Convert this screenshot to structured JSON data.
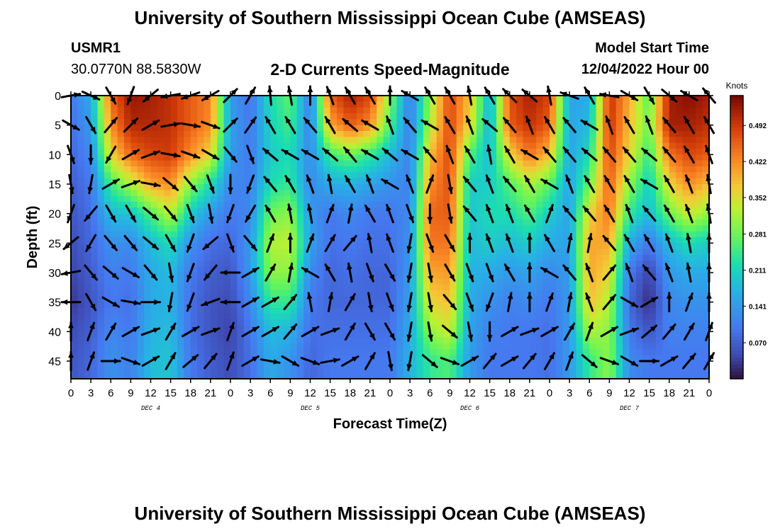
{
  "chart_data": {
    "type": "heatmap",
    "title": "University of Southern Mississippi Ocean Cube (AMSEAS)",
    "footer_title": "University of Southern Mississippi Ocean Cube (AMSEAS)",
    "station": "USMR1",
    "location": "30.0770N  88.5830W",
    "subtitle": "2-D Currents Speed-Magnitude",
    "model_start_label": "Model Start Time",
    "model_start_value": "12/04/2022 Hour 00",
    "xlabel": "Forecast Time(Z)",
    "ylabel": "Depth (ft)",
    "x_ticks": [
      "0",
      "3",
      "6",
      "9",
      "12",
      "15",
      "18",
      "21",
      "0",
      "3",
      "6",
      "9",
      "12",
      "15",
      "18",
      "21",
      "0",
      "3",
      "6",
      "9",
      "12",
      "15",
      "18",
      "21",
      "0",
      "3",
      "6",
      "9",
      "12",
      "15",
      "18",
      "21",
      "0"
    ],
    "day_labels": [
      {
        "text": "DEC 4",
        "hour": 12
      },
      {
        "text": "DEC 5",
        "hour": 36
      },
      {
        "text": "DEC 6",
        "hour": 60
      },
      {
        "text": "DEC 7",
        "hour": 84
      }
    ],
    "xlim": [
      0,
      96
    ],
    "ylim": [
      0,
      48
    ],
    "y_ticks": [
      "0",
      "5",
      "10",
      "15",
      "20",
      "25",
      "30",
      "35",
      "40",
      "45"
    ],
    "y_tick_values": [
      0,
      5,
      10,
      15,
      20,
      25,
      30,
      35,
      40,
      45
    ],
    "colorbar": {
      "unit": "Knots",
      "range": [
        0.0,
        0.55
      ],
      "ticks": [
        "0.492",
        "0.422",
        "0.352",
        "0.281",
        "0.211",
        "0.141",
        "0.070"
      ],
      "tick_values": [
        0.492,
        0.422,
        0.352,
        0.281,
        0.211,
        0.141,
        0.07
      ]
    },
    "speed_field_hours": [
      0,
      3,
      6,
      9,
      12,
      15,
      18,
      21,
      24,
      27,
      30,
      33,
      36,
      39,
      42,
      45,
      48,
      51,
      54,
      57,
      60,
      63,
      66,
      69,
      72,
      75,
      78,
      81,
      84,
      87,
      90,
      93,
      96
    ],
    "speed_field_depths": [
      0,
      5,
      10,
      15,
      20,
      25,
      30,
      35,
      40,
      45,
      48
    ],
    "speed_field": [
      [
        0.1,
        0.09,
        0.08,
        0.07,
        0.06,
        0.05,
        0.04,
        0.03,
        0.05,
        0.06,
        0.06
      ],
      [
        0.16,
        0.14,
        0.12,
        0.1,
        0.09,
        0.08,
        0.07,
        0.06,
        0.07,
        0.08,
        0.08
      ],
      [
        0.45,
        0.42,
        0.36,
        0.25,
        0.18,
        0.13,
        0.11,
        0.1,
        0.12,
        0.13,
        0.13
      ],
      [
        0.53,
        0.51,
        0.45,
        0.32,
        0.19,
        0.12,
        0.1,
        0.09,
        0.1,
        0.11,
        0.11
      ],
      [
        0.52,
        0.51,
        0.48,
        0.4,
        0.26,
        0.18,
        0.16,
        0.16,
        0.17,
        0.18,
        0.18
      ],
      [
        0.5,
        0.5,
        0.49,
        0.42,
        0.33,
        0.22,
        0.18,
        0.17,
        0.18,
        0.19,
        0.19
      ],
      [
        0.46,
        0.46,
        0.42,
        0.3,
        0.2,
        0.13,
        0.1,
        0.09,
        0.09,
        0.1,
        0.1
      ],
      [
        0.43,
        0.42,
        0.36,
        0.22,
        0.14,
        0.09,
        0.07,
        0.06,
        0.06,
        0.07,
        0.07
      ],
      [
        0.14,
        0.15,
        0.14,
        0.12,
        0.1,
        0.08,
        0.06,
        0.05,
        0.04,
        0.05,
        0.05
      ],
      [
        0.09,
        0.1,
        0.1,
        0.11,
        0.12,
        0.14,
        0.14,
        0.12,
        0.1,
        0.09,
        0.09
      ],
      [
        0.22,
        0.21,
        0.2,
        0.22,
        0.28,
        0.32,
        0.3,
        0.24,
        0.18,
        0.16,
        0.16
      ],
      [
        0.27,
        0.25,
        0.22,
        0.24,
        0.3,
        0.33,
        0.3,
        0.24,
        0.17,
        0.13,
        0.13
      ],
      [
        0.1,
        0.11,
        0.12,
        0.12,
        0.14,
        0.15,
        0.12,
        0.1,
        0.09,
        0.08,
        0.08
      ],
      [
        0.46,
        0.4,
        0.25,
        0.16,
        0.1,
        0.09,
        0.08,
        0.08,
        0.09,
        0.1,
        0.1
      ],
      [
        0.52,
        0.46,
        0.28,
        0.17,
        0.12,
        0.1,
        0.09,
        0.08,
        0.09,
        0.1,
        0.1
      ],
      [
        0.48,
        0.42,
        0.24,
        0.15,
        0.1,
        0.09,
        0.08,
        0.08,
        0.09,
        0.1,
        0.1
      ],
      [
        0.3,
        0.26,
        0.18,
        0.13,
        0.1,
        0.09,
        0.08,
        0.08,
        0.09,
        0.1,
        0.1
      ],
      [
        0.1,
        0.1,
        0.11,
        0.11,
        0.12,
        0.13,
        0.14,
        0.15,
        0.16,
        0.17,
        0.17
      ],
      [
        0.3,
        0.32,
        0.38,
        0.42,
        0.45,
        0.44,
        0.4,
        0.36,
        0.3,
        0.24,
        0.24
      ],
      [
        0.48,
        0.48,
        0.48,
        0.47,
        0.46,
        0.44,
        0.41,
        0.38,
        0.34,
        0.26,
        0.26
      ],
      [
        0.38,
        0.36,
        0.26,
        0.2,
        0.19,
        0.18,
        0.17,
        0.16,
        0.15,
        0.14,
        0.14
      ],
      [
        0.16,
        0.16,
        0.18,
        0.2,
        0.22,
        0.2,
        0.16,
        0.13,
        0.11,
        0.1,
        0.1
      ],
      [
        0.47,
        0.46,
        0.36,
        0.26,
        0.22,
        0.18,
        0.14,
        0.11,
        0.1,
        0.1,
        0.1
      ],
      [
        0.52,
        0.5,
        0.44,
        0.32,
        0.26,
        0.2,
        0.15,
        0.12,
        0.1,
        0.1,
        0.1
      ],
      [
        0.48,
        0.46,
        0.38,
        0.27,
        0.2,
        0.16,
        0.12,
        0.1,
        0.09,
        0.09,
        0.09
      ],
      [
        0.15,
        0.15,
        0.15,
        0.15,
        0.15,
        0.15,
        0.14,
        0.14,
        0.14,
        0.14,
        0.14
      ],
      [
        0.16,
        0.18,
        0.22,
        0.28,
        0.36,
        0.4,
        0.4,
        0.38,
        0.32,
        0.24,
        0.24
      ],
      [
        0.5,
        0.5,
        0.48,
        0.46,
        0.44,
        0.4,
        0.36,
        0.32,
        0.3,
        0.3,
        0.3
      ],
      [
        0.4,
        0.38,
        0.36,
        0.3,
        0.24,
        0.16,
        0.1,
        0.08,
        0.1,
        0.12,
        0.12
      ],
      [
        0.26,
        0.28,
        0.24,
        0.2,
        0.18,
        0.1,
        0.04,
        0.02,
        0.06,
        0.1,
        0.1
      ],
      [
        0.52,
        0.52,
        0.44,
        0.36,
        0.28,
        0.18,
        0.14,
        0.12,
        0.11,
        0.1,
        0.1
      ],
      [
        0.54,
        0.52,
        0.48,
        0.42,
        0.34,
        0.22,
        0.16,
        0.13,
        0.11,
        0.1,
        0.1
      ],
      [
        0.52,
        0.5,
        0.46,
        0.38,
        0.3,
        0.2,
        0.16,
        0.13,
        0.11,
        0.1,
        0.1
      ]
    ],
    "vector_note": "Arrows show current direction; degrees clockwise from north",
    "vector_hours": [
      0,
      3,
      6,
      9,
      12,
      15,
      18,
      21,
      24,
      27,
      30,
      33,
      36,
      39,
      42,
      45,
      48,
      51,
      54,
      57,
      60,
      63,
      66,
      69,
      72,
      75,
      78,
      81,
      84,
      87,
      90,
      93,
      96
    ],
    "vector_depths": [
      0,
      5,
      10,
      15,
      20,
      25,
      30,
      35,
      40,
      45
    ],
    "vector_dirs": [
      [
        80,
        115,
        150,
        200,
        230,
        260,
        250,
        240,
        45,
        30,
        355,
        350,
        0,
        340,
        330,
        330,
        0,
        300,
        330,
        330,
        350,
        330,
        315,
        310,
        350,
        290,
        330,
        280,
        120,
        150,
        130,
        300,
        320
      ],
      [
        120,
        150,
        40,
        45,
        60,
        80,
        100,
        110,
        45,
        35,
        330,
        330,
        320,
        330,
        310,
        300,
        340,
        320,
        300,
        330,
        340,
        310,
        320,
        340,
        330,
        320,
        300,
        340,
        330,
        340,
        320,
        330,
        330
      ],
      [
        160,
        180,
        210,
        60,
        70,
        100,
        110,
        120,
        140,
        160,
        310,
        300,
        300,
        310,
        320,
        300,
        310,
        300,
        320,
        340,
        330,
        350,
        330,
        300,
        320,
        320,
        310,
        320,
        320,
        310,
        320,
        330,
        340
      ],
      [
        170,
        190,
        60,
        70,
        100,
        130,
        140,
        160,
        180,
        200,
        320,
        330,
        340,
        350,
        330,
        340,
        300,
        340,
        20,
        170,
        320,
        340,
        320,
        330,
        300,
        340,
        330,
        330,
        330,
        300,
        330,
        340,
        350
      ],
      [
        200,
        220,
        150,
        150,
        130,
        140,
        160,
        170,
        200,
        210,
        330,
        350,
        350,
        20,
        10,
        330,
        340,
        160,
        180,
        170,
        320,
        340,
        340,
        330,
        20,
        320,
        320,
        330,
        340,
        320,
        330,
        340,
        350
      ],
      [
        230,
        210,
        140,
        140,
        130,
        150,
        200,
        230,
        160,
        140,
        20,
        0,
        20,
        30,
        40,
        350,
        340,
        190,
        160,
        150,
        360,
        340,
        340,
        360,
        330,
        10,
        10,
        320,
        330,
        330,
        340,
        350,
        0
      ],
      [
        260,
        140,
        130,
        120,
        140,
        170,
        200,
        220,
        270,
        60,
        30,
        10,
        300,
        330,
        350,
        160,
        150,
        190,
        170,
        150,
        160,
        160,
        330,
        0,
        300,
        320,
        340,
        40,
        340,
        320,
        340,
        350,
        0
      ],
      [
        270,
        150,
        120,
        100,
        90,
        190,
        200,
        250,
        270,
        60,
        60,
        40,
        350,
        10,
        30,
        170,
        160,
        190,
        170,
        140,
        160,
        200,
        10,
        0,
        20,
        10,
        340,
        40,
        120,
        60,
        0,
        20,
        0
      ],
      [
        0,
        20,
        30,
        60,
        70,
        30,
        60,
        70,
        20,
        60,
        60,
        40,
        60,
        70,
        30,
        150,
        150,
        190,
        170,
        130,
        170,
        180,
        60,
        70,
        60,
        30,
        20,
        60,
        70,
        50,
        40,
        30,
        20
      ],
      [
        0,
        20,
        90,
        110,
        60,
        30,
        50,
        40,
        20,
        60,
        100,
        120,
        110,
        80,
        60,
        30,
        170,
        190,
        130,
        110,
        60,
        40,
        60,
        40,
        30,
        20,
        130,
        110,
        120,
        90,
        60,
        40,
        30
      ]
    ]
  }
}
